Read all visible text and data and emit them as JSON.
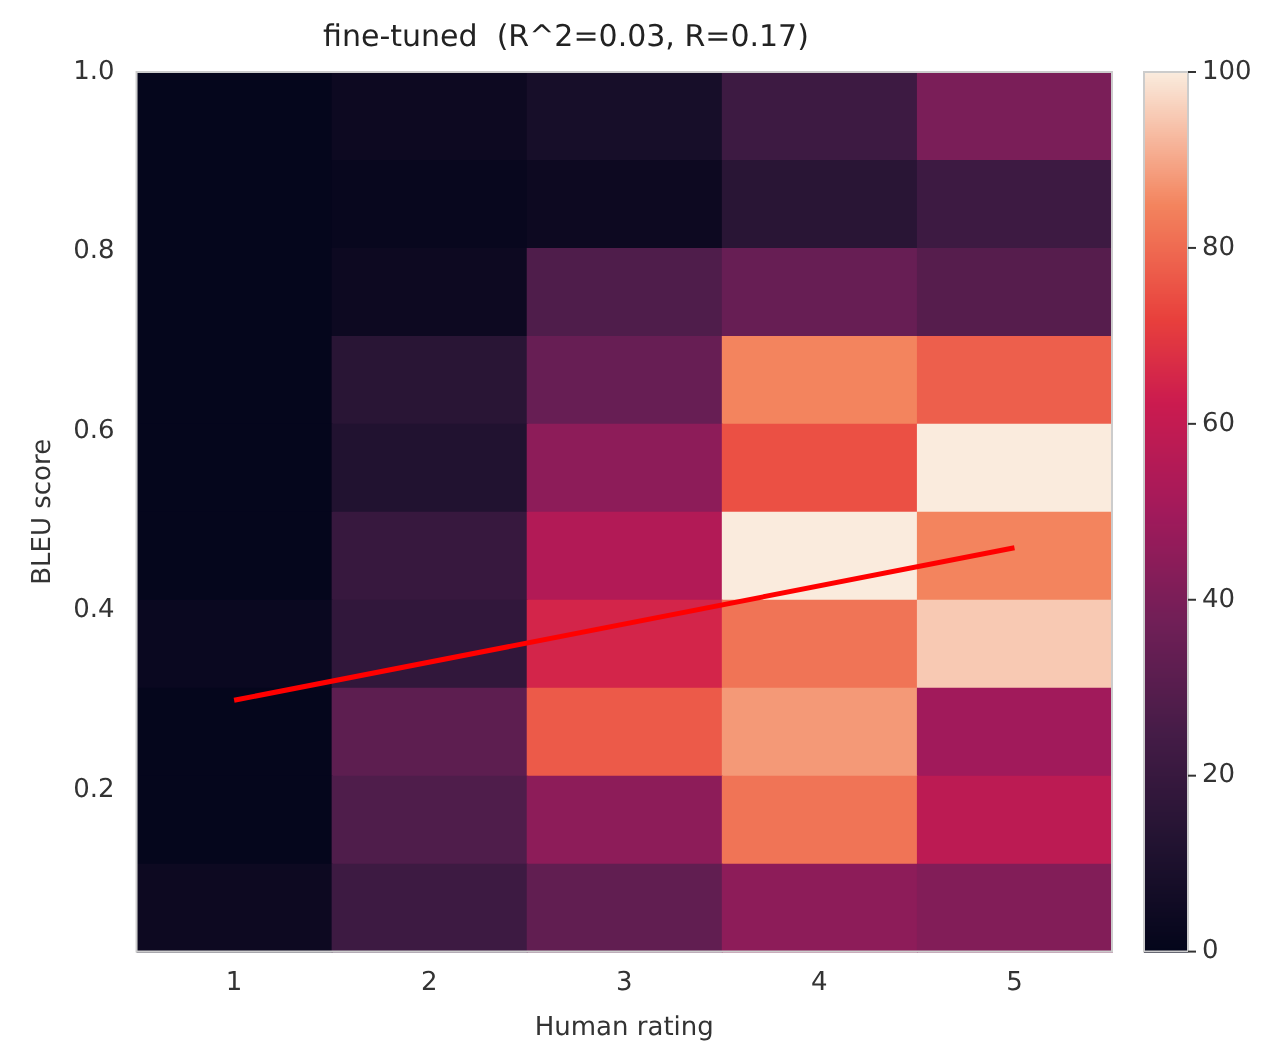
{
  "chart_data": {
    "type": "heatmap",
    "title": "fine-tuned  (R^2=0.03, R=0.17)",
    "xlabel": "Human rating",
    "ylabel": "BLEU score",
    "categories": [
      "1",
      "2",
      "3",
      "4",
      "5"
    ],
    "ylim": [
      0.02,
      1.0
    ],
    "yticks": [
      {
        "value": 0.2,
        "label": "0.2"
      },
      {
        "value": 0.4,
        "label": "0.4"
      },
      {
        "value": 0.6,
        "label": "0.6"
      },
      {
        "value": 0.8,
        "label": "0.8"
      },
      {
        "value": 1.0,
        "label": "1.0"
      }
    ],
    "cells": [
      [
        1,
        4,
        8,
        22,
        40
      ],
      [
        1,
        2,
        4,
        15,
        22
      ],
      [
        1,
        4,
        28,
        35,
        30
      ],
      [
        1,
        15,
        35,
        85,
        78
      ],
      [
        1,
        12,
        45,
        75,
        100
      ],
      [
        1,
        20,
        55,
        100,
        85
      ],
      [
        3,
        18,
        65,
        82,
        95
      ],
      [
        1,
        32,
        77,
        88,
        50
      ],
      [
        1,
        28,
        45,
        82,
        58
      ],
      [
        4,
        22,
        33,
        45,
        42
      ]
    ],
    "clim": [
      0,
      100
    ],
    "cticks": [
      0,
      20,
      40,
      60,
      80,
      100
    ],
    "series": [
      {
        "type": "line",
        "color": "#ff0000",
        "x": [
          "1",
          "5"
        ],
        "values": [
          0.3,
          0.47
        ]
      }
    ],
    "grid": false,
    "legend": false
  }
}
